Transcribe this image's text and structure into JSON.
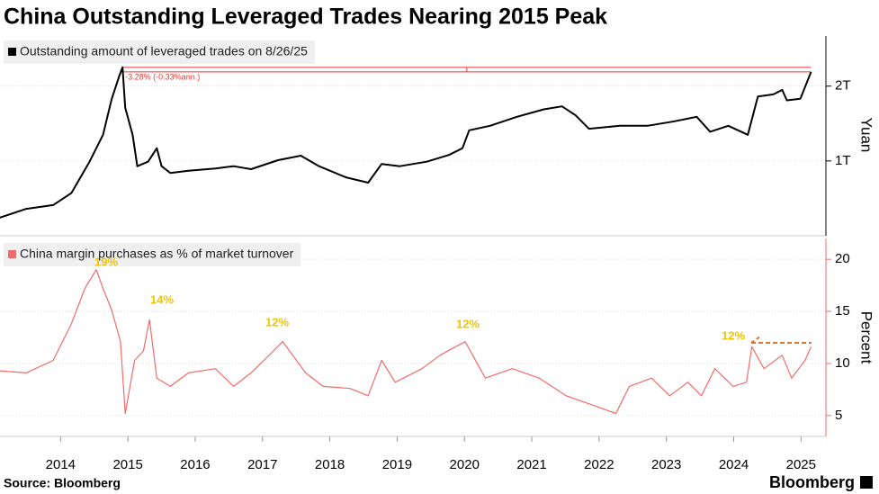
{
  "title": "China Outstanding Leveraged Trades Nearing 2015 Peak",
  "source": "Source: Bloomberg",
  "logo": "Bloomberg",
  "chart_data": [
    {
      "type": "line",
      "annotation": "-3.28% (-0.33%ann.)",
      "y_label": "Yuan",
      "xlim": [
        2013.6,
        2025.87
      ],
      "x": [
        2013.59,
        2013.99,
        2014.39,
        2014.66,
        2014.93,
        2015.13,
        2015.26,
        2015.37,
        2015.42,
        2015.46,
        2015.57,
        2015.64,
        2015.8,
        2015.93,
        2016.0,
        2016.13,
        2016.4,
        2016.8,
        2017.07,
        2017.33,
        2017.73,
        2018.07,
        2018.34,
        2018.74,
        2019.07,
        2019.27,
        2019.54,
        2019.94,
        2020.27,
        2020.47,
        2020.57,
        2020.88,
        2021.28,
        2021.68,
        2021.95,
        2022.15,
        2022.35,
        2022.81,
        2023.22,
        2023.62,
        2023.95,
        2024.15,
        2024.42,
        2024.71,
        2024.86,
        2025.09,
        2025.22,
        2025.29,
        2025.49,
        2025.65
      ],
      "series": [
        {
          "name": "Outstanding amount of leveraged trades on 8/26/25",
          "color": "#000000",
          "axis": "y2",
          "values": [
            0.24,
            0.36,
            0.41,
            0.57,
            0.99,
            1.35,
            1.83,
            2.13,
            2.25,
            1.71,
            1.35,
            0.93,
            0.99,
            1.17,
            0.93,
            0.84,
            0.87,
            0.9,
            0.93,
            0.89,
            1.01,
            1.07,
            0.93,
            0.78,
            0.71,
            0.96,
            0.93,
            0.99,
            1.08,
            1.17,
            1.41,
            1.47,
            1.59,
            1.69,
            1.73,
            1.61,
            1.43,
            1.47,
            1.47,
            1.53,
            1.59,
            1.39,
            1.47,
            1.35,
            1.86,
            1.89,
            1.95,
            1.81,
            1.83,
            2.19
          ]
        }
      ],
      "y2lim": [
        0,
        2.67
      ],
      "y2ticks": [
        {
          "value": 1,
          "label": "1T"
        },
        {
          "value": 2,
          "label": "2T"
        }
      ]
    },
    {
      "type": "line",
      "annotations": [
        "19%",
        "14%",
        "12%",
        "12%",
        "12%"
      ],
      "y_label": "Percent",
      "xlim": [
        2013.6,
        2025.87
      ],
      "xticks": [
        {
          "value": 2014.5,
          "label": "2014"
        },
        {
          "value": 2015.5,
          "label": "2015"
        },
        {
          "value": 2016.5,
          "label": "2016"
        },
        {
          "value": 2017.5,
          "label": "2017"
        },
        {
          "value": 2018.5,
          "label": "2018"
        },
        {
          "value": 2019.5,
          "label": "2019"
        },
        {
          "value": 2020.5,
          "label": "2020"
        },
        {
          "value": 2021.5,
          "label": "2021"
        },
        {
          "value": 2022.5,
          "label": "2022"
        },
        {
          "value": 2023.5,
          "label": "2023"
        },
        {
          "value": 2024.5,
          "label": "2024"
        },
        {
          "value": 2025.5,
          "label": "2025"
        }
      ],
      "x": [
        2013.59,
        2013.99,
        2014.39,
        2014.66,
        2014.86,
        2015.03,
        2015.13,
        2015.26,
        2015.39,
        2015.46,
        2015.6,
        2015.73,
        2015.82,
        2015.93,
        2016.13,
        2016.4,
        2016.8,
        2017.07,
        2017.33,
        2017.6,
        2017.8,
        2018.14,
        2018.4,
        2018.8,
        2019.07,
        2019.27,
        2019.47,
        2019.87,
        2020.14,
        2020.51,
        2020.81,
        2021.21,
        2021.61,
        2022.01,
        2022.41,
        2022.75,
        2022.95,
        2023.28,
        2023.55,
        2023.82,
        2024.02,
        2024.22,
        2024.49,
        2024.69,
        2024.77,
        2024.95,
        2025.22,
        2025.36,
        2025.56,
        2025.65
      ],
      "series": [
        {
          "name": "China margin purchases as % of market turnover",
          "color": "#f26b6b",
          "axis": "y2",
          "values": [
            9.3,
            9.1,
            10.3,
            13.8,
            17.2,
            19,
            17.2,
            15.1,
            12.1,
            5.2,
            10.3,
            11.2,
            14.2,
            8.6,
            7.8,
            9.1,
            9.5,
            7.8,
            9.1,
            10.8,
            12.1,
            9.1,
            7.8,
            7.6,
            6.9,
            10.3,
            8.2,
            9.5,
            10.8,
            12.1,
            8.6,
            9.5,
            8.6,
            6.9,
            6.0,
            5.2,
            7.8,
            8.6,
            6.9,
            8.2,
            6.9,
            9.5,
            7.8,
            8.2,
            11.6,
            9.5,
            10.8,
            8.6,
            10.3,
            11.6
          ]
        }
      ],
      "y2lim": [
        3,
        22
      ],
      "y2ticks": [
        5,
        10,
        15,
        20
      ]
    }
  ]
}
